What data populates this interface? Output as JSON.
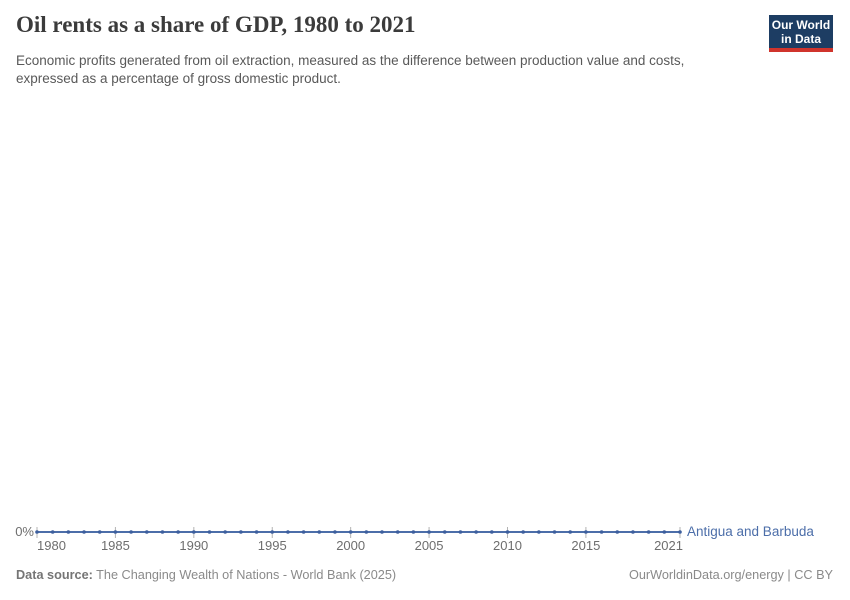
{
  "header": {
    "title": "Oil rents as a share of GDP, 1980 to 2021",
    "subtitle": "Economic profits generated from oil extraction, measured as the difference between production value and costs, expressed as a percentage of gross domestic product."
  },
  "logo": {
    "line1": "Our World",
    "line2": "in Data",
    "background_color": "#1d3d63",
    "stripe_color": "#d0342c",
    "text_color": "#ffffff"
  },
  "chart_data": {
    "type": "line",
    "title": "Oil rents as a share of GDP, 1980 to 2021",
    "unit": "% of GDP",
    "x": [
      1980,
      1981,
      1982,
      1983,
      1984,
      1985,
      1986,
      1987,
      1988,
      1989,
      1990,
      1991,
      1992,
      1993,
      1994,
      1995,
      1996,
      1997,
      1998,
      1999,
      2000,
      2001,
      2002,
      2003,
      2004,
      2005,
      2006,
      2007,
      2008,
      2009,
      2010,
      2011,
      2012,
      2013,
      2014,
      2015,
      2016,
      2017,
      2018,
      2019,
      2020,
      2021
    ],
    "series": [
      {
        "name": "Antigua and Barbuda",
        "color": "#4c6ea9",
        "marker_color": "#3d5f9e",
        "values": [
          0,
          0,
          0,
          0,
          0,
          0,
          0,
          0,
          0,
          0,
          0,
          0,
          0,
          0,
          0,
          0,
          0,
          0,
          0,
          0,
          0,
          0,
          0,
          0,
          0,
          0,
          0,
          0,
          0,
          0,
          0,
          0,
          0,
          0,
          0,
          0,
          0,
          0,
          0,
          0,
          0,
          0
        ]
      }
    ],
    "xticks": [
      1980,
      1985,
      1990,
      1995,
      2000,
      2005,
      2010,
      2015,
      2021
    ],
    "yticks": [
      "0%"
    ],
    "ytick_label": "0%",
    "ylim": [
      0,
      0
    ],
    "grid": false,
    "markers": true,
    "legend_position": "end-of-line",
    "axis_text_color": "#6e6e6e",
    "tick_mark_color": "#b3b3b3"
  },
  "footer": {
    "source_label": "Data source:",
    "source_value": " The Changing Wealth of Nations - World Bank (2025)",
    "credit": "OurWorldinData.org/energy | CC BY"
  }
}
